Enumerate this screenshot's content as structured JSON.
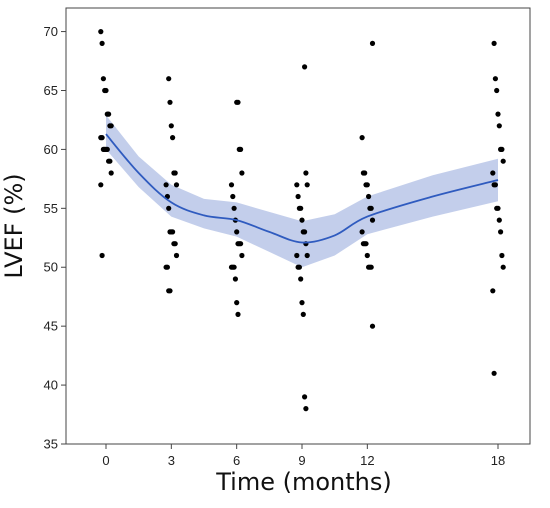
{
  "chart_data": {
    "type": "scatter",
    "title": "",
    "xlabel": "Time (months)",
    "ylabel": "LVEF (%)",
    "ylim": [
      35,
      72
    ],
    "x_ticks": [
      0,
      3,
      6,
      9,
      12,
      18
    ],
    "y_ticks": [
      35,
      40,
      45,
      50,
      55,
      60,
      65,
      70
    ],
    "grid": false,
    "colors": {
      "points": "#000000",
      "fit_line": "#2f5bbf",
      "ci_band": "#b9c5e8"
    },
    "points": [
      {
        "x": 0,
        "values": [
          70,
          69,
          66,
          65,
          65,
          63,
          63,
          62,
          62,
          61,
          61,
          60,
          60,
          60,
          60,
          59,
          59,
          58,
          57,
          51
        ]
      },
      {
        "x": 3,
        "values": [
          66,
          64,
          62,
          61,
          58,
          58,
          57,
          57,
          56,
          55,
          53,
          53,
          53,
          52,
          52,
          51,
          50,
          50,
          48,
          48
        ]
      },
      {
        "x": 6,
        "values": [
          64,
          64,
          60,
          60,
          58,
          57,
          56,
          55,
          54,
          53,
          52,
          52,
          52,
          51,
          50,
          50,
          50,
          49,
          47,
          46
        ]
      },
      {
        "x": 9,
        "values": [
          67,
          58,
          57,
          57,
          56,
          55,
          55,
          54,
          53,
          53,
          52,
          51,
          51,
          50,
          50,
          49,
          47,
          46,
          39,
          38
        ]
      },
      {
        "x": 12,
        "values": [
          69,
          61,
          58,
          58,
          57,
          57,
          56,
          55,
          55,
          54,
          53,
          52,
          52,
          52,
          51,
          50,
          50,
          50,
          45
        ]
      },
      {
        "x": 18,
        "values": [
          69,
          66,
          65,
          63,
          62,
          60,
          60,
          59,
          58,
          57,
          57,
          55,
          55,
          54,
          53,
          51,
          50,
          48,
          41
        ]
      }
    ],
    "fit_line": {
      "x": [
        0,
        1.5,
        3,
        4.5,
        6,
        7.5,
        9,
        10.5,
        12,
        15,
        18
      ],
      "y": [
        61.3,
        58.0,
        55.5,
        54.4,
        54.0,
        53.0,
        52.1,
        52.7,
        54.3,
        56.0,
        57.4
      ]
    },
    "ci_band": {
      "x": [
        0,
        1.5,
        3,
        4.5,
        6,
        7.5,
        9,
        10.5,
        12,
        15,
        18
      ],
      "lower": [
        60.0,
        56.8,
        54.3,
        53.3,
        52.6,
        51.3,
        50.0,
        51.0,
        52.8,
        54.3,
        55.6
      ],
      "upper": [
        62.9,
        59.4,
        57.0,
        55.8,
        55.5,
        54.7,
        53.9,
        54.5,
        56.0,
        57.8,
        59.2
      ]
    }
  }
}
